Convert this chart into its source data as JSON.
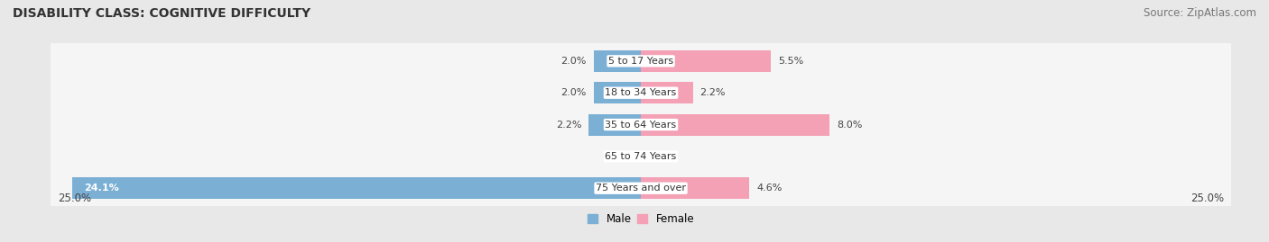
{
  "title": "DISABILITY CLASS: COGNITIVE DIFFICULTY",
  "source": "Source: ZipAtlas.com",
  "categories": [
    "5 to 17 Years",
    "18 to 34 Years",
    "35 to 64 Years",
    "65 to 74 Years",
    "75 Years and over"
  ],
  "male_values": [
    2.0,
    2.0,
    2.2,
    0.0,
    24.1
  ],
  "female_values": [
    5.5,
    2.2,
    8.0,
    0.0,
    4.6
  ],
  "male_color": "#7bafd4",
  "female_color": "#f4a0b5",
  "male_label": "Male",
  "female_label": "Female",
  "xlim": 25.0,
  "bg_color": "#e8e8e8",
  "bar_bg_color": "#f5f5f5",
  "title_fontsize": 10,
  "source_fontsize": 8.5,
  "label_fontsize": 8,
  "tick_fontsize": 8.5,
  "bar_height": 0.68
}
